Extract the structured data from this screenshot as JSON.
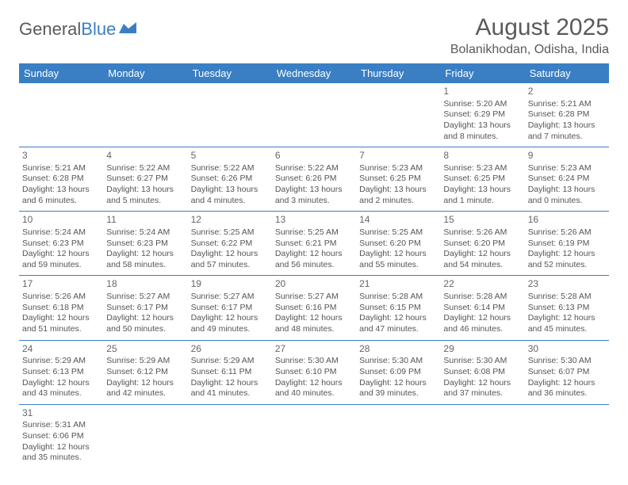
{
  "logo": {
    "text1": "General",
    "text2": "Blue"
  },
  "title": "August 2025",
  "location": "Bolanikhodan, Odisha, India",
  "header_bg": "#3a7fc4",
  "days_of_week": [
    "Sunday",
    "Monday",
    "Tuesday",
    "Wednesday",
    "Thursday",
    "Friday",
    "Saturday"
  ],
  "weeks": [
    [
      null,
      null,
      null,
      null,
      null,
      {
        "n": "1",
        "sr": "Sunrise: 5:20 AM",
        "ss": "Sunset: 6:29 PM",
        "dl": "Daylight: 13 hours and 8 minutes."
      },
      {
        "n": "2",
        "sr": "Sunrise: 5:21 AM",
        "ss": "Sunset: 6:28 PM",
        "dl": "Daylight: 13 hours and 7 minutes."
      }
    ],
    [
      {
        "n": "3",
        "sr": "Sunrise: 5:21 AM",
        "ss": "Sunset: 6:28 PM",
        "dl": "Daylight: 13 hours and 6 minutes."
      },
      {
        "n": "4",
        "sr": "Sunrise: 5:22 AM",
        "ss": "Sunset: 6:27 PM",
        "dl": "Daylight: 13 hours and 5 minutes."
      },
      {
        "n": "5",
        "sr": "Sunrise: 5:22 AM",
        "ss": "Sunset: 6:26 PM",
        "dl": "Daylight: 13 hours and 4 minutes."
      },
      {
        "n": "6",
        "sr": "Sunrise: 5:22 AM",
        "ss": "Sunset: 6:26 PM",
        "dl": "Daylight: 13 hours and 3 minutes."
      },
      {
        "n": "7",
        "sr": "Sunrise: 5:23 AM",
        "ss": "Sunset: 6:25 PM",
        "dl": "Daylight: 13 hours and 2 minutes."
      },
      {
        "n": "8",
        "sr": "Sunrise: 5:23 AM",
        "ss": "Sunset: 6:25 PM",
        "dl": "Daylight: 13 hours and 1 minute."
      },
      {
        "n": "9",
        "sr": "Sunrise: 5:23 AM",
        "ss": "Sunset: 6:24 PM",
        "dl": "Daylight: 13 hours and 0 minutes."
      }
    ],
    [
      {
        "n": "10",
        "sr": "Sunrise: 5:24 AM",
        "ss": "Sunset: 6:23 PM",
        "dl": "Daylight: 12 hours and 59 minutes."
      },
      {
        "n": "11",
        "sr": "Sunrise: 5:24 AM",
        "ss": "Sunset: 6:23 PM",
        "dl": "Daylight: 12 hours and 58 minutes."
      },
      {
        "n": "12",
        "sr": "Sunrise: 5:25 AM",
        "ss": "Sunset: 6:22 PM",
        "dl": "Daylight: 12 hours and 57 minutes."
      },
      {
        "n": "13",
        "sr": "Sunrise: 5:25 AM",
        "ss": "Sunset: 6:21 PM",
        "dl": "Daylight: 12 hours and 56 minutes."
      },
      {
        "n": "14",
        "sr": "Sunrise: 5:25 AM",
        "ss": "Sunset: 6:20 PM",
        "dl": "Daylight: 12 hours and 55 minutes."
      },
      {
        "n": "15",
        "sr": "Sunrise: 5:26 AM",
        "ss": "Sunset: 6:20 PM",
        "dl": "Daylight: 12 hours and 54 minutes."
      },
      {
        "n": "16",
        "sr": "Sunrise: 5:26 AM",
        "ss": "Sunset: 6:19 PM",
        "dl": "Daylight: 12 hours and 52 minutes."
      }
    ],
    [
      {
        "n": "17",
        "sr": "Sunrise: 5:26 AM",
        "ss": "Sunset: 6:18 PM",
        "dl": "Daylight: 12 hours and 51 minutes."
      },
      {
        "n": "18",
        "sr": "Sunrise: 5:27 AM",
        "ss": "Sunset: 6:17 PM",
        "dl": "Daylight: 12 hours and 50 minutes."
      },
      {
        "n": "19",
        "sr": "Sunrise: 5:27 AM",
        "ss": "Sunset: 6:17 PM",
        "dl": "Daylight: 12 hours and 49 minutes."
      },
      {
        "n": "20",
        "sr": "Sunrise: 5:27 AM",
        "ss": "Sunset: 6:16 PM",
        "dl": "Daylight: 12 hours and 48 minutes."
      },
      {
        "n": "21",
        "sr": "Sunrise: 5:28 AM",
        "ss": "Sunset: 6:15 PM",
        "dl": "Daylight: 12 hours and 47 minutes."
      },
      {
        "n": "22",
        "sr": "Sunrise: 5:28 AM",
        "ss": "Sunset: 6:14 PM",
        "dl": "Daylight: 12 hours and 46 minutes."
      },
      {
        "n": "23",
        "sr": "Sunrise: 5:28 AM",
        "ss": "Sunset: 6:13 PM",
        "dl": "Daylight: 12 hours and 45 minutes."
      }
    ],
    [
      {
        "n": "24",
        "sr": "Sunrise: 5:29 AM",
        "ss": "Sunset: 6:13 PM",
        "dl": "Daylight: 12 hours and 43 minutes."
      },
      {
        "n": "25",
        "sr": "Sunrise: 5:29 AM",
        "ss": "Sunset: 6:12 PM",
        "dl": "Daylight: 12 hours and 42 minutes."
      },
      {
        "n": "26",
        "sr": "Sunrise: 5:29 AM",
        "ss": "Sunset: 6:11 PM",
        "dl": "Daylight: 12 hours and 41 minutes."
      },
      {
        "n": "27",
        "sr": "Sunrise: 5:30 AM",
        "ss": "Sunset: 6:10 PM",
        "dl": "Daylight: 12 hours and 40 minutes."
      },
      {
        "n": "28",
        "sr": "Sunrise: 5:30 AM",
        "ss": "Sunset: 6:09 PM",
        "dl": "Daylight: 12 hours and 39 minutes."
      },
      {
        "n": "29",
        "sr": "Sunrise: 5:30 AM",
        "ss": "Sunset: 6:08 PM",
        "dl": "Daylight: 12 hours and 37 minutes."
      },
      {
        "n": "30",
        "sr": "Sunrise: 5:30 AM",
        "ss": "Sunset: 6:07 PM",
        "dl": "Daylight: 12 hours and 36 minutes."
      }
    ],
    [
      {
        "n": "31",
        "sr": "Sunrise: 5:31 AM",
        "ss": "Sunset: 6:06 PM",
        "dl": "Daylight: 12 hours and 35 minutes."
      },
      null,
      null,
      null,
      null,
      null,
      null
    ]
  ]
}
